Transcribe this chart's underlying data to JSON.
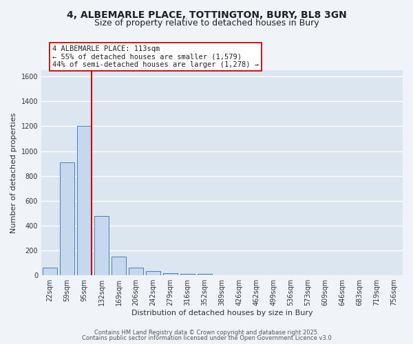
{
  "title_line1": "4, ALBEMARLE PLACE, TOTTINGTON, BURY, BL8 3GN",
  "title_line2": "Size of property relative to detached houses in Bury",
  "xlabel": "Distribution of detached houses by size in Bury",
  "ylabel": "Number of detached properties",
  "categories": [
    "22sqm",
    "59sqm",
    "95sqm",
    "132sqm",
    "169sqm",
    "206sqm",
    "242sqm",
    "279sqm",
    "316sqm",
    "352sqm",
    "389sqm",
    "426sqm",
    "462sqm",
    "499sqm",
    "536sqm",
    "573sqm",
    "609sqm",
    "646sqm",
    "683sqm",
    "719sqm",
    "756sqm"
  ],
  "values": [
    60,
    910,
    1200,
    475,
    150,
    60,
    35,
    15,
    10,
    10,
    0,
    0,
    0,
    0,
    0,
    0,
    0,
    0,
    0,
    0,
    0
  ],
  "bar_color": "#c5d8ed",
  "bar_edge_color": "#4a7fb5",
  "axes_bg_color": "#dce6f0",
  "fig_bg_color": "#f0f4f8",
  "grid_color": "#ffffff",
  "annotation_text_line1": "4 ALBEMARLE PLACE: 113sqm",
  "annotation_text_line2": "← 55% of detached houses are smaller (1,579)",
  "annotation_text_line3": "44% of semi-detached houses are larger (1,278) →",
  "red_line_color": "#cc0000",
  "red_line_x": 2.4,
  "ylim": [
    0,
    1650
  ],
  "yticks": [
    0,
    200,
    400,
    600,
    800,
    1000,
    1200,
    1400,
    1600
  ],
  "footnote1": "Contains HM Land Registry data © Crown copyright and database right 2025.",
  "footnote2": "Contains public sector information licensed under the Open Government Licence v3.0",
  "title_fontsize": 10,
  "subtitle_fontsize": 9,
  "axis_label_fontsize": 8,
  "tick_fontsize": 7,
  "annotation_fontsize": 7.5,
  "footnote_fontsize": 6
}
